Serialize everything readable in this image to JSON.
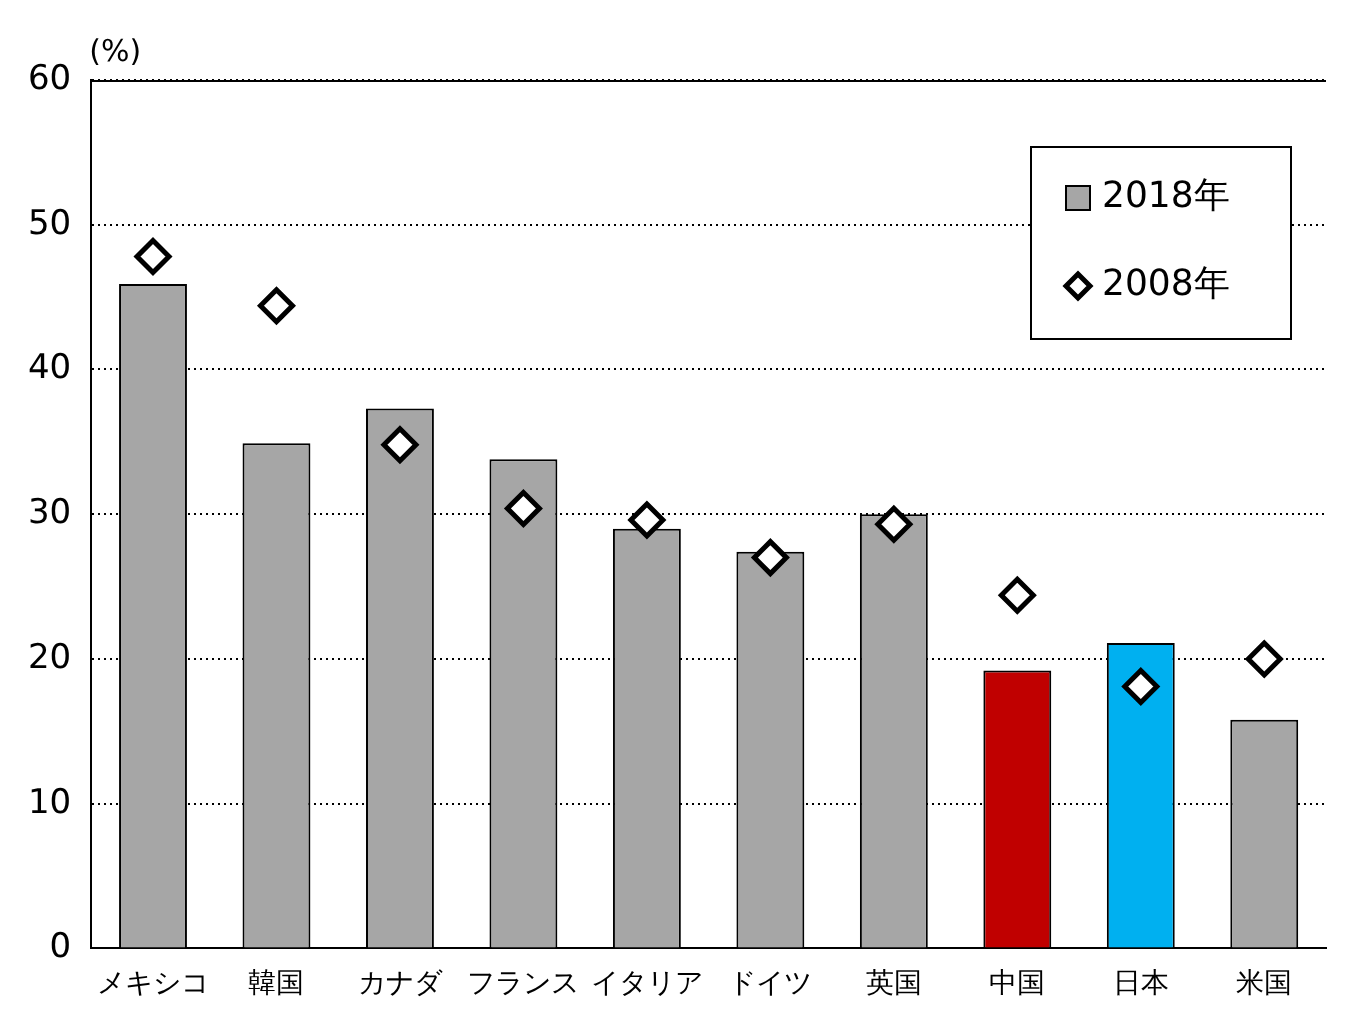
{
  "chart_data": {
    "type": "bar",
    "ylabel": "(%)",
    "categories": [
      "メキシコ",
      "韓国",
      "カナダ",
      "フランス",
      "イタリア",
      "ドイツ",
      "英国",
      "中国",
      "日本",
      "米国"
    ],
    "series": [
      {
        "name": "2018年",
        "color": "#a6a6a6",
        "colors": [
          "#a6a6a6",
          "#a6a6a6",
          "#a6a6a6",
          "#a6a6a6",
          "#a6a6a6",
          "#a6a6a6",
          "#a6a6a6",
          "#c00000",
          "#00b0f0",
          "#a6a6a6"
        ],
        "values": [
          45.9,
          34.9,
          37.3,
          33.8,
          29.0,
          27.4,
          30.0,
          19.2,
          21.1,
          15.8
        ]
      },
      {
        "name": "2008年",
        "type": "scatter",
        "color": "#ffffff",
        "marker": "diamond",
        "x": [
          "メキシコ",
          "韓国",
          "カナダ",
          "フランス",
          "イタリア",
          "ドイツ",
          "英国",
          "中国",
          "日本",
          "米国"
        ],
        "values": [
          47.8,
          44.4,
          34.8,
          30.4,
          29.6,
          27.0,
          29.3,
          24.4,
          18.1,
          20.0
        ]
      }
    ],
    "ylim": [
      0,
      60
    ],
    "yticks": [
      0,
      10,
      20,
      30,
      40,
      50,
      60
    ],
    "grid": "y",
    "legend": "top right"
  }
}
